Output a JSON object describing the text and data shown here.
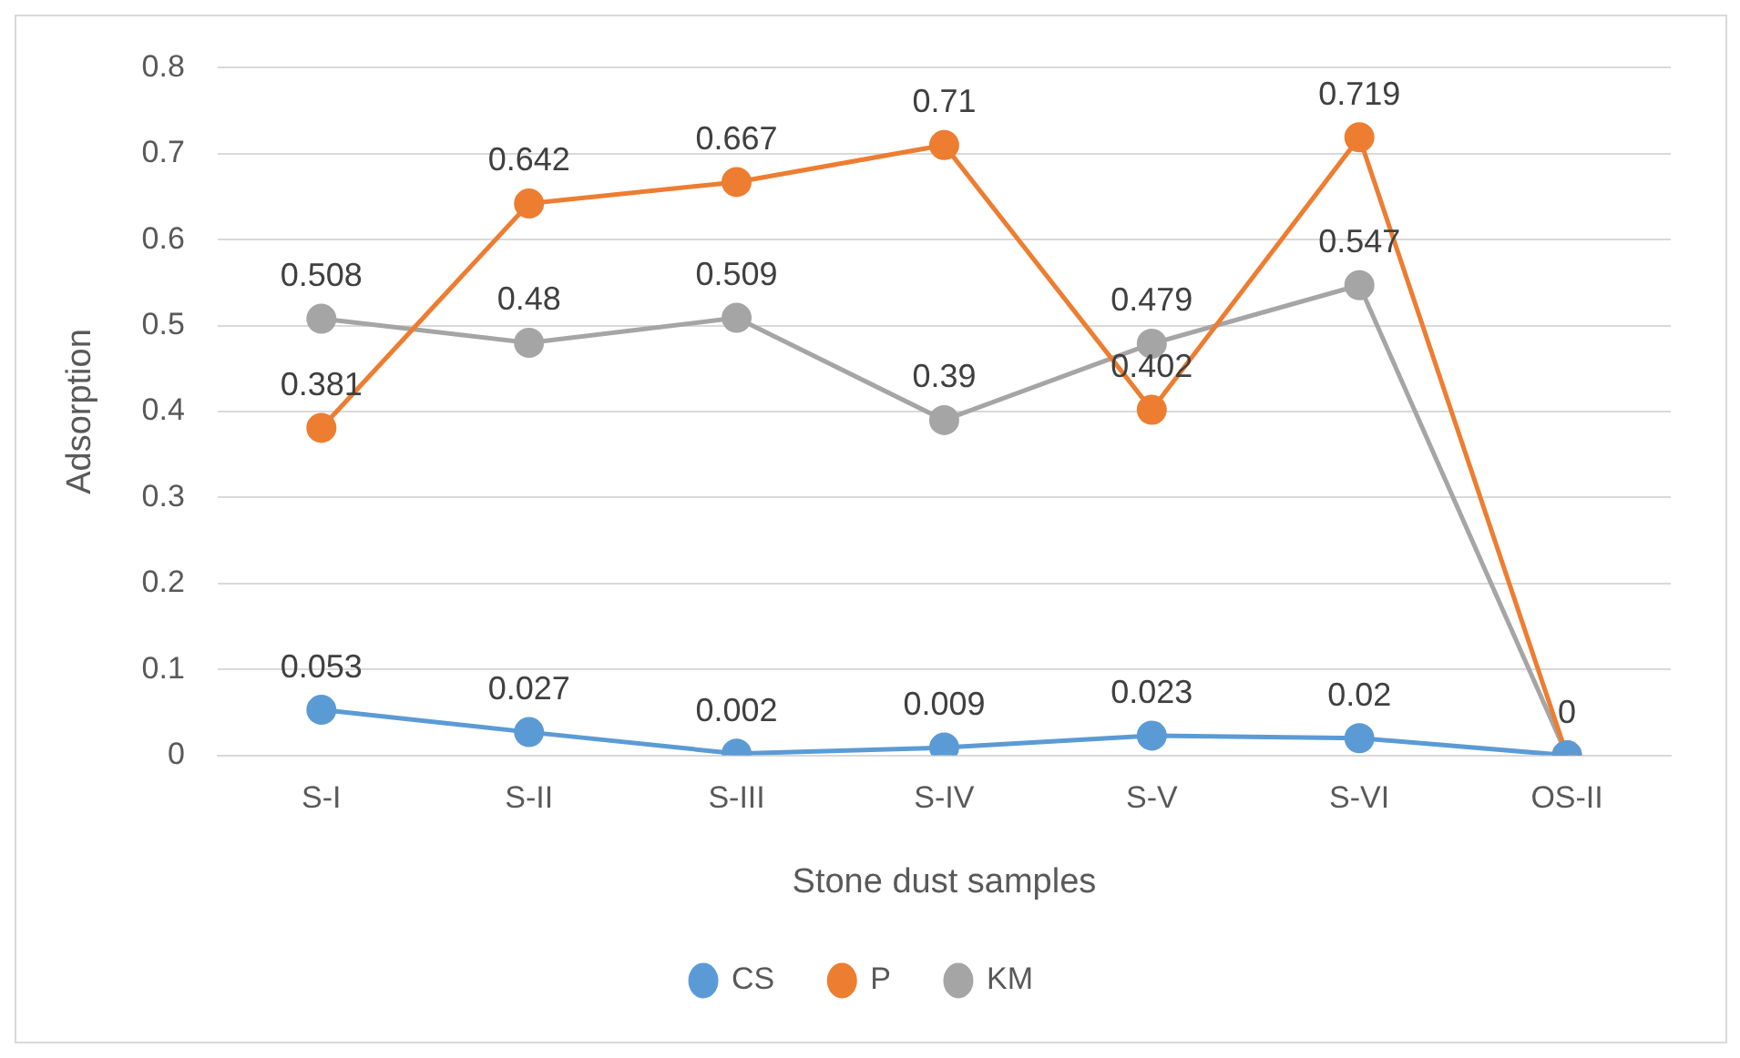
{
  "chart_data": {
    "type": "line",
    "xlabel": "Stone dust samples",
    "ylabel": "Adsorption",
    "categories": [
      "S-I",
      "S-II",
      "S-III",
      "S-IV",
      "S-V",
      "S-VI",
      "OS-II"
    ],
    "series": [
      {
        "name": "CS",
        "color": "#5b9bd5",
        "values": [
          0.053,
          0.027,
          0.002,
          0.009,
          0.023,
          0.02,
          0
        ],
        "value_labels": [
          "0.053",
          "0.027",
          "0.002",
          "0.009",
          "0.023",
          "0.02",
          "0"
        ]
      },
      {
        "name": "P",
        "color": "#ed7d31",
        "values": [
          0.381,
          0.642,
          0.667,
          0.71,
          0.402,
          0.719,
          0
        ],
        "value_labels": [
          "0.381",
          "0.642",
          "0.667",
          "0.71",
          "0.402",
          "0.719",
          null
        ]
      },
      {
        "name": "KM",
        "color": "#a5a5a5",
        "values": [
          0.508,
          0.48,
          0.509,
          0.39,
          0.479,
          0.547,
          0
        ],
        "value_labels": [
          "0.508",
          "0.48",
          "0.509",
          "0.39",
          "0.479",
          "0.547",
          null
        ]
      }
    ],
    "ylim": [
      0,
      0.8
    ],
    "yticks": [
      0,
      0.1,
      0.2,
      0.3,
      0.4,
      0.5,
      0.6,
      0.7,
      0.8
    ],
    "grid": "y",
    "legend": "bottom",
    "marker": "circle",
    "line_style": "solid"
  }
}
